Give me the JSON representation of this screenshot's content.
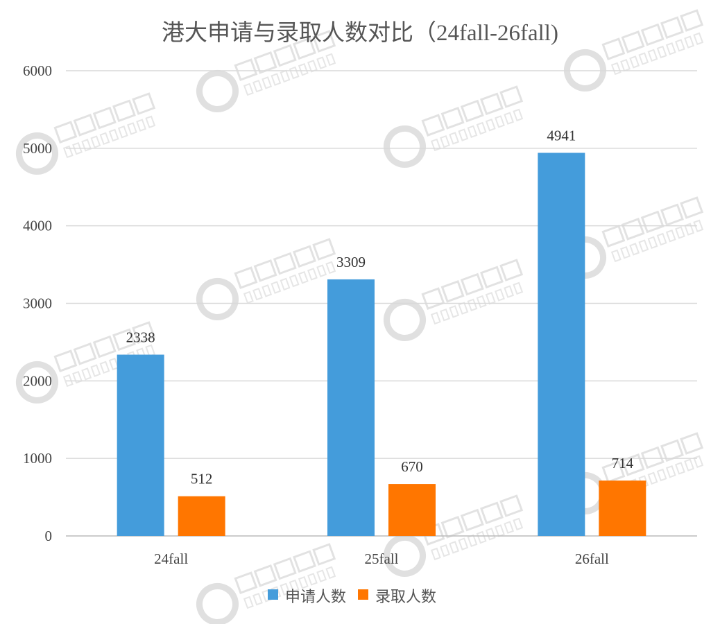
{
  "chart_data": {
    "type": "bar",
    "title": "港大申请与录取人数对比（24fall-26fall)",
    "categories": [
      "24fall",
      "25fall",
      "26fall"
    ],
    "series": [
      {
        "name": "申请人数",
        "values": [
          2338,
          3309,
          4941
        ],
        "color": "#449CDB"
      },
      {
        "name": "录取人数",
        "values": [
          512,
          670,
          714
        ],
        "color": "#FF7600"
      }
    ],
    "ylim": [
      0,
      6000
    ],
    "yticks": [
      0,
      1000,
      2000,
      3000,
      4000,
      5000,
      6000
    ],
    "grid": true,
    "legend": "bottom",
    "data_labels": true
  },
  "watermark": {
    "cn": "指南者留学",
    "en": "COMPASSEDU"
  }
}
